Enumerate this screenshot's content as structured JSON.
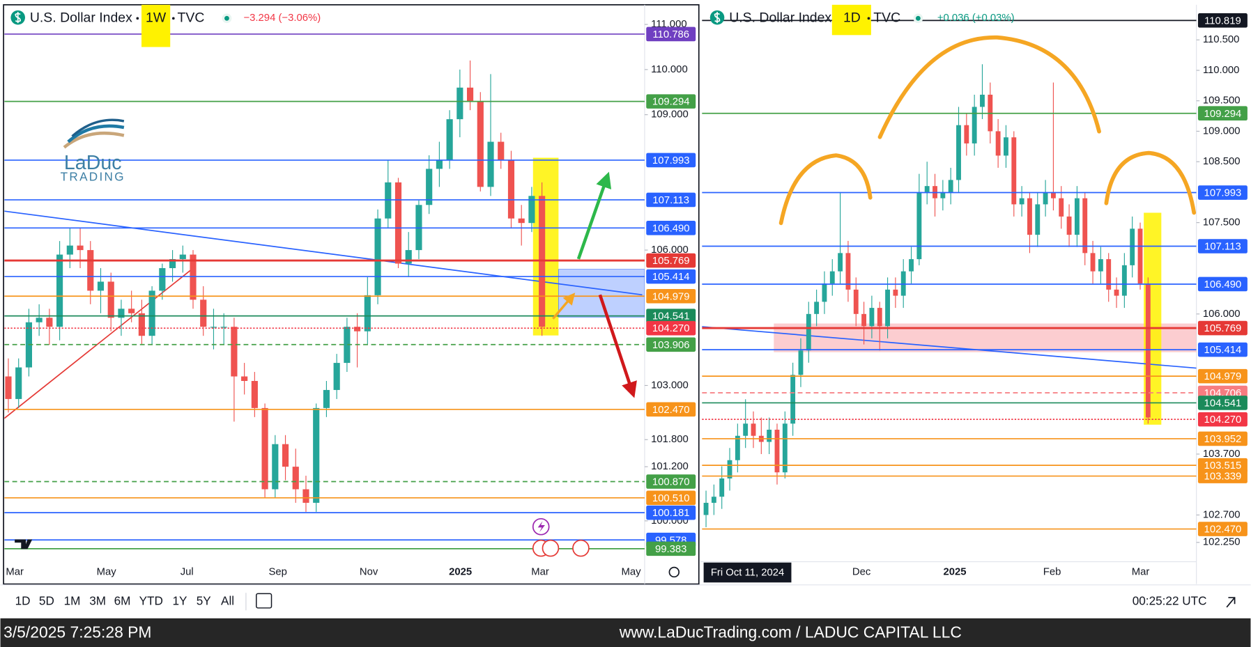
{
  "left": {
    "symbol": "U.S. Dollar Index",
    "interval": "1W",
    "source": "TVC",
    "change": "−3.294 (−3.06%)",
    "change_color": "#f23645",
    "ylim": [
      99.2,
      111.4
    ],
    "yticks": [
      {
        "value": 111,
        "label": "111.000"
      },
      {
        "value": 110,
        "label": "110.000"
      },
      {
        "value": 109,
        "label": "109.000"
      },
      {
        "value": 106,
        "label": "106.000"
      },
      {
        "value": 103,
        "label": "103.000"
      },
      {
        "value": 101.8,
        "label": "101.800"
      },
      {
        "value": 101.2,
        "label": "101.200"
      },
      {
        "value": 100,
        "label": "100.000"
      }
    ],
    "x_labels": [
      "Mar",
      "May",
      "Jul",
      "Sep",
      "Nov",
      "2025",
      "Mar",
      "May"
    ],
    "levels": [
      {
        "price": 110.786,
        "color": "#6f3fc1"
      },
      {
        "price": 109.294,
        "color": "#43a047"
      },
      {
        "price": 107.993,
        "color": "#2962ff"
      },
      {
        "price": 107.113,
        "color": "#2962ff"
      },
      {
        "price": 106.49,
        "label": "106.490",
        "color": "#2962ff"
      },
      {
        "price": 105.769,
        "color": "#e53935"
      },
      {
        "price": 105.414,
        "color": "#2962ff"
      },
      {
        "price": 104.979,
        "color": "#f7931a"
      },
      {
        "price": 104.541,
        "color": "#1b8a5a"
      },
      {
        "price": 104.27,
        "label": "104.270",
        "color": "#f23645",
        "style": "dotted"
      },
      {
        "price": 103.906,
        "color": "#43a047",
        "style": "dashed"
      },
      {
        "price": 102.47,
        "label": "102.470",
        "color": "#f7931a"
      },
      {
        "price": 100.87,
        "label": "100.870",
        "color": "#43a047",
        "style": "dashed"
      },
      {
        "price": 100.51,
        "label": "100.510",
        "color": "#f7931a"
      },
      {
        "price": 100.181,
        "color": "#2962ff"
      },
      {
        "price": 99.578,
        "color": "#2962ff"
      },
      {
        "price": 99.383,
        "color": "#43a047"
      }
    ],
    "candles": [
      [
        103.2,
        103.6,
        102.4,
        102.7
      ],
      [
        102.7,
        103.6,
        102.5,
        103.4
      ],
      [
        103.4,
        104.7,
        103.2,
        104.4
      ],
      [
        104.4,
        104.8,
        104.1,
        104.5
      ],
      [
        104.5,
        104.7,
        103.9,
        104.3
      ],
      [
        104.3,
        106.2,
        104.0,
        105.9
      ],
      [
        105.9,
        106.5,
        105.6,
        106.1
      ],
      [
        106.1,
        106.5,
        105.6,
        106.0
      ],
      [
        106.0,
        106.2,
        104.8,
        105.1
      ],
      [
        105.1,
        105.6,
        104.6,
        105.3
      ],
      [
        105.3,
        105.5,
        104.2,
        104.5
      ],
      [
        104.5,
        104.9,
        104.1,
        104.7
      ],
      [
        104.7,
        105.1,
        104.4,
        104.6
      ],
      [
        104.6,
        104.9,
        103.9,
        104.1
      ],
      [
        104.1,
        105.2,
        103.9,
        105.1
      ],
      [
        105.1,
        105.7,
        104.9,
        105.6
      ],
      [
        105.6,
        106.0,
        105.3,
        105.8
      ],
      [
        105.8,
        106.1,
        105.5,
        105.9
      ],
      [
        105.9,
        106.0,
        104.7,
        104.9
      ],
      [
        104.9,
        105.2,
        104.1,
        104.3
      ],
      [
        104.3,
        104.7,
        103.8,
        104.3
      ],
      [
        104.3,
        104.6,
        103.9,
        104.3
      ],
      [
        104.3,
        104.5,
        102.2,
        103.2
      ],
      [
        103.2,
        103.5,
        102.8,
        103.1
      ],
      [
        103.1,
        103.3,
        102.3,
        102.5
      ],
      [
        102.5,
        102.6,
        100.5,
        100.7
      ],
      [
        100.7,
        101.9,
        100.5,
        101.7
      ],
      [
        101.7,
        101.9,
        100.9,
        101.2
      ],
      [
        101.2,
        101.6,
        100.4,
        100.7
      ],
      [
        100.7,
        101.0,
        100.2,
        100.4
      ],
      [
        100.4,
        102.6,
        100.2,
        102.5
      ],
      [
        102.5,
        103.1,
        102.3,
        102.9
      ],
      [
        102.9,
        103.7,
        102.7,
        103.5
      ],
      [
        103.5,
        104.5,
        103.3,
        104.3
      ],
      [
        104.3,
        104.6,
        103.4,
        104.2
      ],
      [
        104.2,
        105.4,
        103.9,
        105.0
      ],
      [
        105.0,
        106.9,
        104.8,
        106.7
      ],
      [
        106.7,
        108.0,
        106.5,
        107.5
      ],
      [
        107.5,
        107.6,
        105.6,
        105.7
      ],
      [
        105.7,
        106.4,
        105.4,
        106.0
      ],
      [
        106.0,
        107.1,
        105.8,
        107.0
      ],
      [
        107.0,
        108.1,
        106.8,
        107.8
      ],
      [
        107.8,
        108.4,
        107.4,
        108.0
      ],
      [
        108.0,
        109.1,
        107.8,
        108.9
      ],
      [
        108.9,
        110.0,
        108.5,
        109.6
      ],
      [
        109.6,
        110.2,
        109.1,
        109.3
      ],
      [
        109.3,
        109.5,
        107.3,
        107.4
      ],
      [
        107.4,
        109.9,
        107.2,
        108.4
      ],
      [
        108.4,
        108.6,
        107.8,
        108.0
      ],
      [
        108.0,
        108.2,
        106.5,
        106.7
      ],
      [
        106.7,
        107.0,
        106.1,
        106.6
      ],
      [
        106.6,
        107.4,
        106.4,
        107.2
      ],
      [
        107.2,
        107.5,
        104.1,
        104.3
      ]
    ]
  },
  "right": {
    "symbol": "U.S. Dollar Index",
    "interval": "1D",
    "source": "TVC",
    "change": "+0.036 (+0.03%)",
    "change_color": "#089981",
    "ylim": [
      101.54,
      111.05
    ],
    "yticks": [
      {
        "value": 110.5,
        "label": "110.500"
      },
      {
        "value": 110,
        "label": "110.000"
      },
      {
        "value": 109.5,
        "label": "109.500"
      },
      {
        "value": 109,
        "label": "109.000"
      },
      {
        "value": 108.5,
        "label": "108.500"
      },
      {
        "value": 107.5,
        "label": "107.500"
      },
      {
        "value": 106,
        "label": "106.000"
      },
      {
        "value": 103.7,
        "label": "103.700"
      },
      {
        "value": 102.7,
        "label": "102.700"
      },
      {
        "value": 102.25,
        "label": "102.250"
      }
    ],
    "crosshair_date": "Fri Oct 11, 2024",
    "x_labels": [
      "Dec",
      "2025",
      "Feb",
      "Mar"
    ],
    "levels": [
      {
        "price": 110.819,
        "color": "#131722"
      },
      {
        "price": 109.294,
        "color": "#43a047"
      },
      {
        "price": 107.993,
        "color": "#2962ff"
      },
      {
        "price": 107.113,
        "color": "#2962ff"
      },
      {
        "price": 106.49,
        "label": "106.490",
        "color": "#2962ff"
      },
      {
        "price": 105.769,
        "color": "#e53935"
      },
      {
        "price": 105.414,
        "color": "#2962ff"
      },
      {
        "price": 104.979,
        "color": "#f7931a"
      },
      {
        "price": 104.706,
        "color": "#f77c80",
        "style": "dashed"
      },
      {
        "price": 104.541,
        "color": "#1b8a5a"
      },
      {
        "price": 104.27,
        "label": "104.270",
        "color": "#f23645",
        "style": "dotted"
      },
      {
        "price": 103.952,
        "color": "#f7931a"
      },
      {
        "price": 103.515,
        "color": "#f7931a"
      },
      {
        "price": 103.339,
        "color": "#f7931a"
      },
      {
        "price": 102.47,
        "label": "102.470",
        "color": "#f7931a"
      }
    ],
    "candles": [
      [
        102.7,
        103.1,
        102.5,
        102.9
      ],
      [
        102.9,
        103.2,
        102.7,
        103.0
      ],
      [
        103.0,
        103.5,
        102.8,
        103.3
      ],
      [
        103.3,
        103.8,
        103.1,
        103.6
      ],
      [
        103.6,
        104.2,
        103.4,
        104.0
      ],
      [
        104.0,
        104.6,
        103.8,
        104.2
      ],
      [
        104.2,
        104.4,
        103.8,
        104.0
      ],
      [
        104.0,
        104.3,
        103.7,
        103.9
      ],
      [
        103.9,
        104.3,
        103.7,
        104.1
      ],
      [
        104.1,
        104.2,
        103.2,
        103.4
      ],
      [
        103.4,
        104.4,
        103.3,
        104.2
      ],
      [
        104.2,
        105.2,
        104.0,
        105.0
      ],
      [
        105.0,
        105.6,
        104.8,
        105.4
      ],
      [
        105.4,
        106.2,
        105.2,
        106.0
      ],
      [
        106.0,
        106.4,
        105.8,
        106.2
      ],
      [
        106.2,
        106.7,
        106.0,
        106.5
      ],
      [
        106.5,
        106.9,
        106.3,
        106.7
      ],
      [
        106.7,
        108.0,
        106.5,
        107.0
      ],
      [
        107.0,
        107.2,
        106.2,
        106.4
      ],
      [
        106.4,
        106.6,
        105.8,
        106.0
      ],
      [
        106.0,
        106.2,
        105.5,
        105.8
      ],
      [
        105.8,
        106.3,
        105.6,
        106.1
      ],
      [
        106.1,
        106.2,
        105.4,
        105.8
      ],
      [
        105.8,
        106.6,
        105.6,
        106.4
      ],
      [
        106.4,
        106.6,
        106.1,
        106.3
      ],
      [
        106.3,
        106.9,
        106.1,
        106.7
      ],
      [
        106.7,
        107.1,
        106.5,
        106.9
      ],
      [
        106.9,
        108.3,
        106.8,
        108.0
      ],
      [
        108.0,
        108.5,
        107.8,
        108.1
      ],
      [
        108.1,
        108.3,
        107.6,
        107.9
      ],
      [
        107.9,
        108.2,
        107.7,
        108.0
      ],
      [
        108.0,
        108.4,
        107.8,
        108.2
      ],
      [
        108.2,
        109.4,
        108.0,
        109.1
      ],
      [
        109.1,
        109.3,
        108.6,
        108.8
      ],
      [
        108.8,
        109.6,
        108.6,
        109.4
      ],
      [
        109.4,
        110.1,
        109.2,
        109.6
      ],
      [
        109.6,
        109.8,
        108.8,
        109.0
      ],
      [
        109.0,
        109.2,
        108.4,
        108.6
      ],
      [
        108.6,
        109.1,
        108.4,
        108.9
      ],
      [
        108.9,
        109.0,
        107.6,
        107.8
      ],
      [
        107.8,
        108.1,
        107.6,
        107.9
      ],
      [
        107.9,
        108.0,
        107.0,
        107.3
      ],
      [
        107.3,
        108.0,
        107.1,
        107.8
      ],
      [
        107.8,
        108.2,
        107.6,
        108.0
      ],
      [
        108.0,
        109.8,
        107.7,
        107.9
      ],
      [
        107.9,
        108.1,
        107.4,
        107.6
      ],
      [
        107.6,
        107.8,
        107.1,
        107.3
      ],
      [
        107.3,
        108.1,
        107.1,
        107.9
      ],
      [
        107.9,
        108.0,
        106.8,
        107.0
      ],
      [
        107.0,
        107.2,
        106.5,
        106.7
      ],
      [
        106.7,
        107.1,
        106.5,
        106.9
      ],
      [
        106.9,
        107.0,
        106.2,
        106.4
      ],
      [
        106.4,
        106.6,
        106.1,
        106.3
      ],
      [
        106.3,
        107.0,
        106.1,
        106.8
      ],
      [
        106.8,
        107.6,
        106.6,
        107.4
      ],
      [
        107.4,
        107.5,
        106.4,
        106.5
      ],
      [
        106.5,
        106.6,
        104.2,
        104.3
      ]
    ]
  },
  "logo": {
    "name": "LaDuc",
    "tagline": "TRADING"
  },
  "toolbar": {
    "ranges": [
      "1D",
      "5D",
      "1M",
      "3M",
      "6M",
      "YTD",
      "1Y",
      "5Y",
      "All"
    ],
    "clock": "00:25:22 UTC"
  },
  "footer": {
    "timestamp": "3/5/2025 7:25:28 PM",
    "site": "www.LaDucTrading.com / LADUC CAPITAL LLC"
  }
}
